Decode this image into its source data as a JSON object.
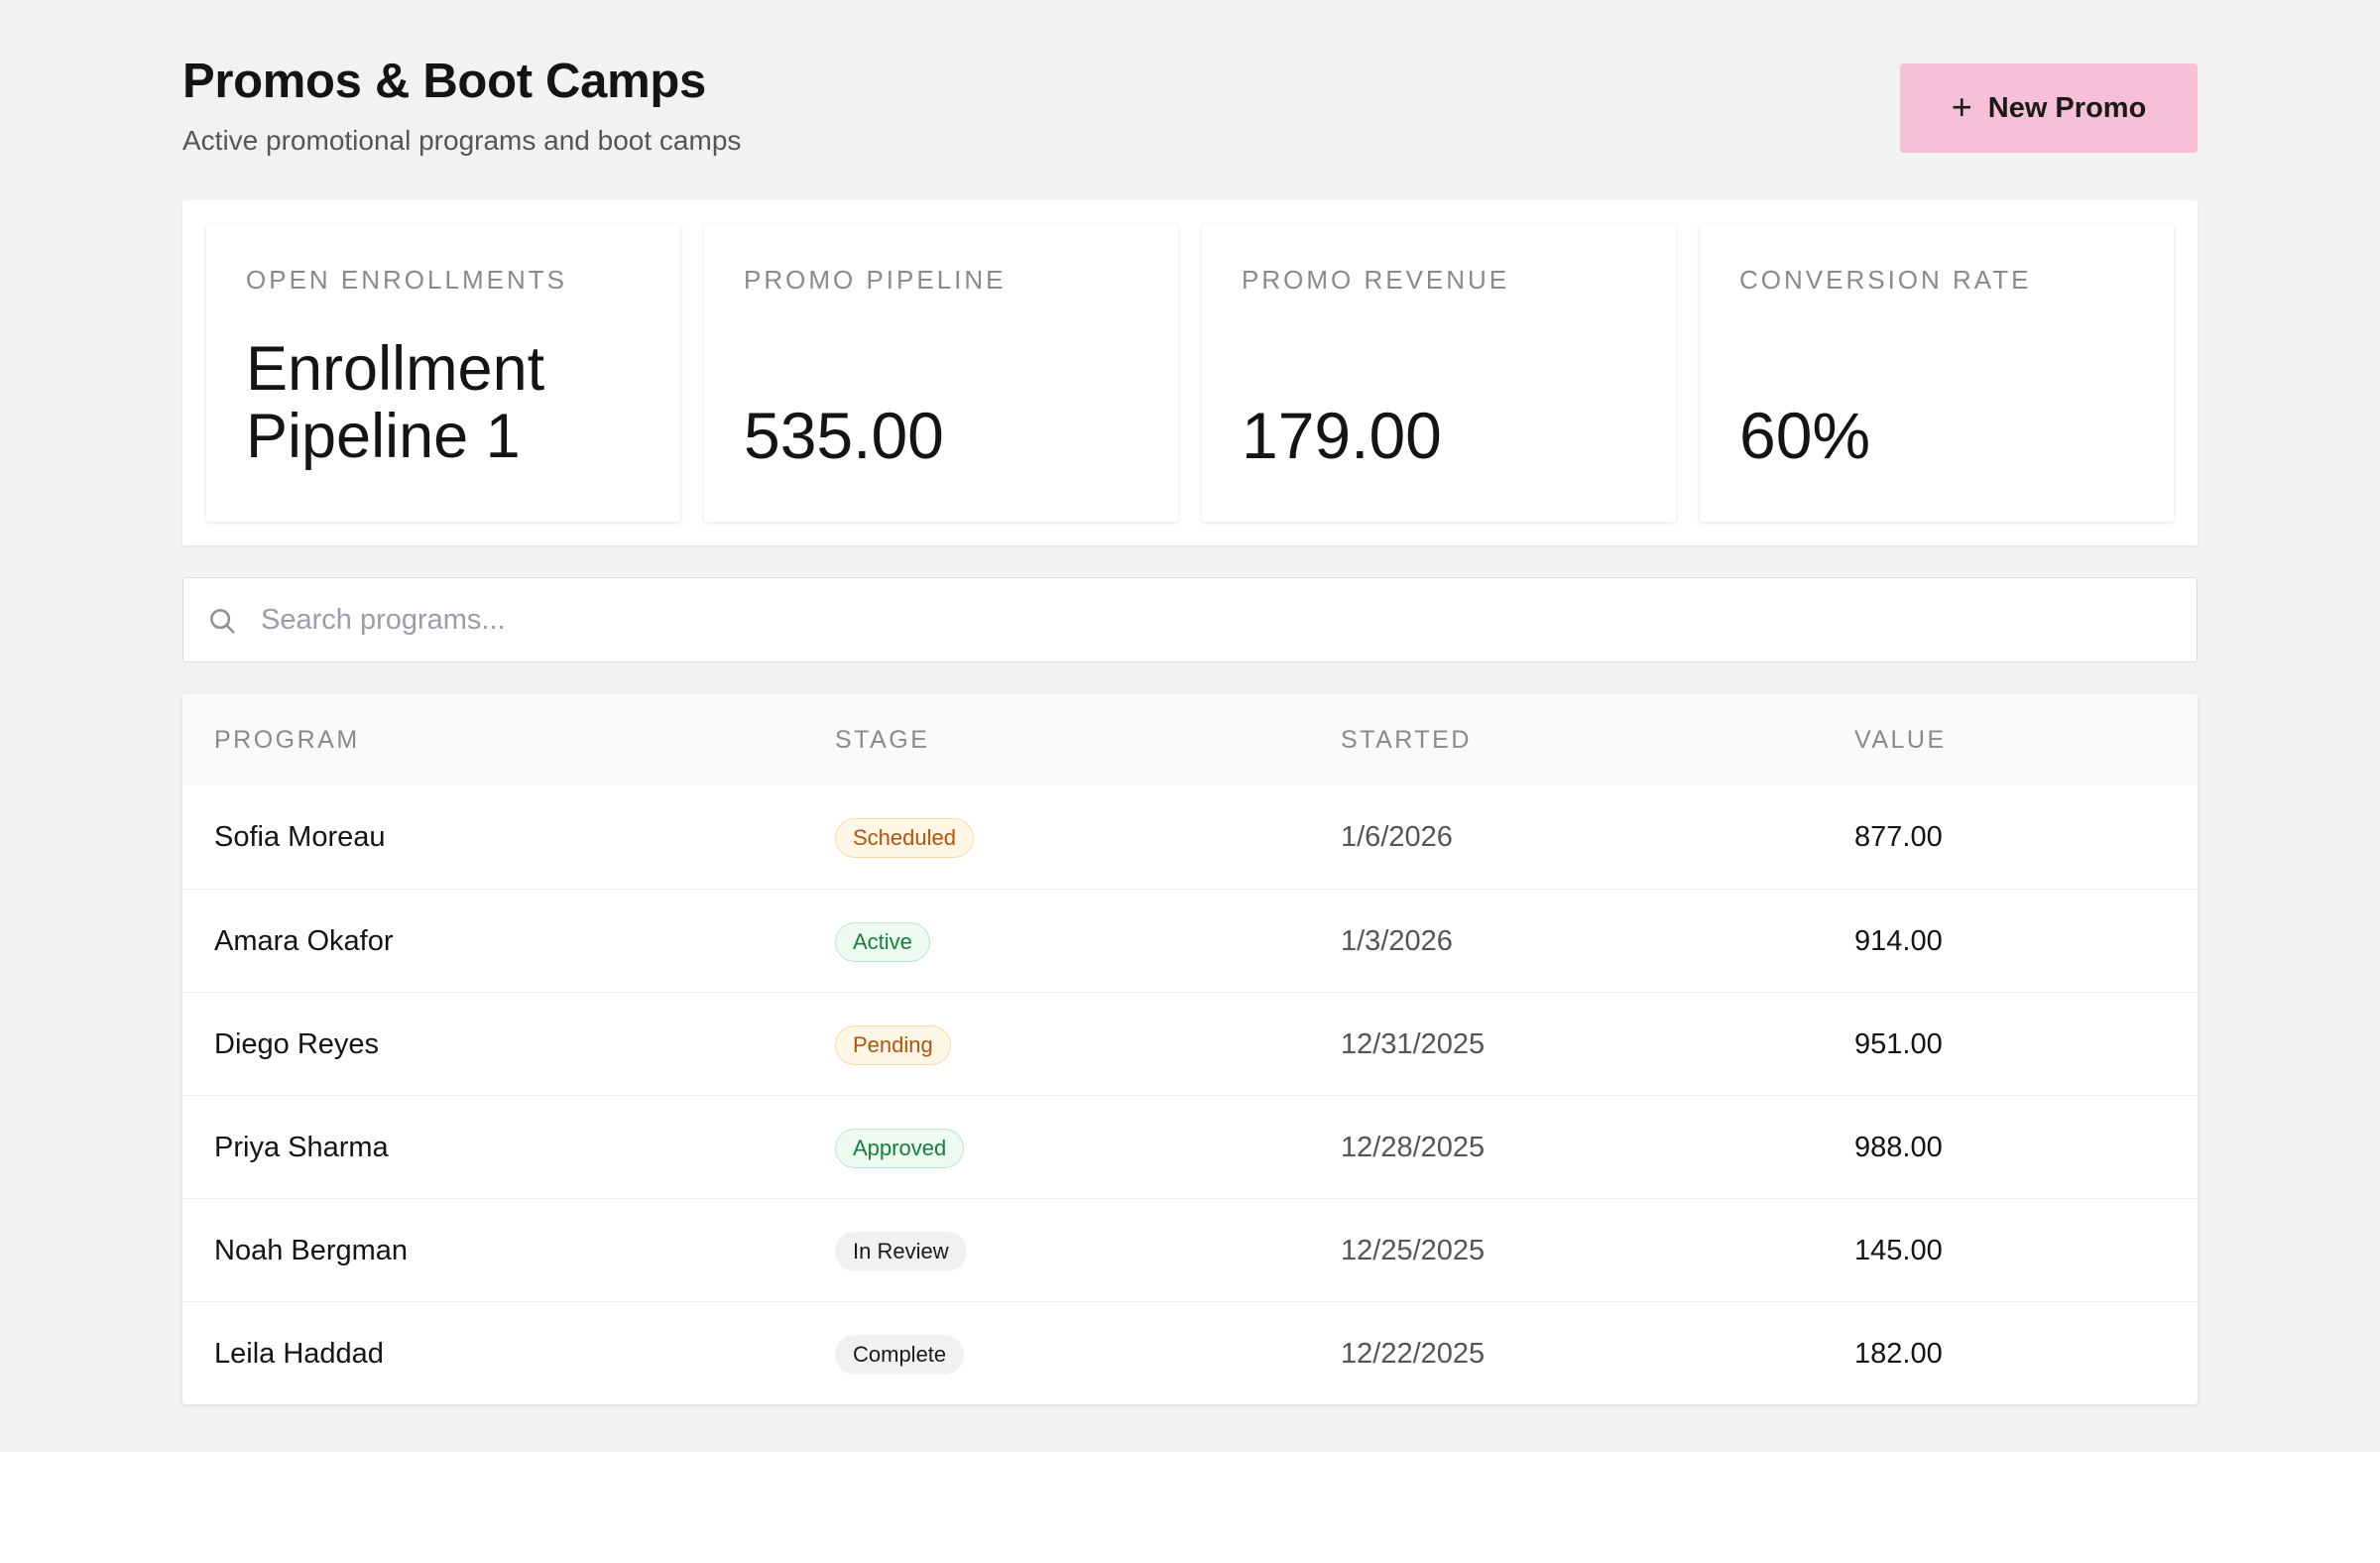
{
  "header": {
    "title": "Promos & Boot Camps",
    "subtitle": "Active promotional programs and boot camps",
    "new_button_label": "New Promo",
    "new_button_icon": "plus-icon"
  },
  "colors": {
    "accent": "#f7c0d6",
    "page_bg": "#f2f2f2",
    "badge_amber": "#b45309",
    "badge_green": "#15803d"
  },
  "stats": [
    {
      "label": "OPEN ENROLLMENTS",
      "value": "Enrollment Pipeline 1"
    },
    {
      "label": "PROMO PIPELINE",
      "value": "535.00"
    },
    {
      "label": "PROMO REVENUE",
      "value": "179.00"
    },
    {
      "label": "CONVERSION RATE",
      "value": "60%"
    }
  ],
  "search": {
    "placeholder": "Search programs...",
    "value": "",
    "icon": "search-icon"
  },
  "table": {
    "columns": [
      "PROGRAM",
      "STAGE",
      "STARTED",
      "VALUE"
    ],
    "rows": [
      {
        "program": "Sofia Moreau",
        "stage": "Scheduled",
        "stage_tone": "amber",
        "started": "1/6/2026",
        "value": "877.00"
      },
      {
        "program": "Amara Okafor",
        "stage": "Active",
        "stage_tone": "green",
        "started": "1/3/2026",
        "value": "914.00"
      },
      {
        "program": "Diego Reyes",
        "stage": "Pending",
        "stage_tone": "amber",
        "started": "12/31/2025",
        "value": "951.00"
      },
      {
        "program": "Priya Sharma",
        "stage": "Approved",
        "stage_tone": "green",
        "started": "12/28/2025",
        "value": "988.00"
      },
      {
        "program": "Noah Bergman",
        "stage": "In Review",
        "stage_tone": "gray",
        "started": "12/25/2025",
        "value": "145.00"
      },
      {
        "program": "Leila Haddad",
        "stage": "Complete",
        "stage_tone": "gray",
        "started": "12/22/2025",
        "value": "182.00"
      }
    ]
  }
}
